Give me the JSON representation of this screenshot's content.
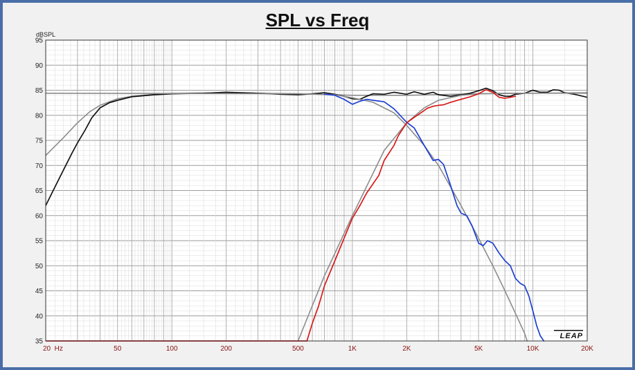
{
  "chart_data": {
    "type": "line",
    "title": "SPL vs Freq",
    "ylabel": "dBSPL",
    "xlabel": "",
    "x_scale": "log",
    "xlim": [
      20,
      20000
    ],
    "ylim": [
      35,
      95
    ],
    "grid": true,
    "x_ticks": [
      {
        "value": 20,
        "label": "20  Hz"
      },
      {
        "value": 50,
        "label": "50"
      },
      {
        "value": 100,
        "label": "100"
      },
      {
        "value": 200,
        "label": "200"
      },
      {
        "value": 500,
        "label": "500"
      },
      {
        "value": 1000,
        "label": "1K"
      },
      {
        "value": 2000,
        "label": "2K"
      },
      {
        "value": 5000,
        "label": "5K"
      },
      {
        "value": 10000,
        "label": "10K"
      },
      {
        "value": 20000,
        "label": "20K"
      }
    ],
    "y_ticks": [
      35,
      40,
      45,
      50,
      55,
      60,
      65,
      70,
      75,
      80,
      85,
      90,
      95
    ],
    "logo_text": "LEAP",
    "series": [
      {
        "color": "#8c8c8c",
        "points": [
          [
            20,
            72
          ],
          [
            25,
            75.5
          ],
          [
            30,
            78.5
          ],
          [
            35,
            80.7
          ],
          [
            40,
            82
          ],
          [
            50,
            83.3
          ],
          [
            60,
            83.8
          ],
          [
            80,
            84.2
          ],
          [
            100,
            84.4
          ],
          [
            200,
            84.5
          ],
          [
            500,
            84.3
          ],
          [
            800,
            84.1
          ],
          [
            1000,
            84
          ],
          [
            2000,
            84
          ],
          [
            5000,
            84.3
          ],
          [
            10000,
            84.4
          ],
          [
            20000,
            84.5
          ]
        ]
      },
      {
        "color": "#111111",
        "points": [
          [
            20,
            62
          ],
          [
            22,
            65
          ],
          [
            25,
            69
          ],
          [
            28,
            72.5
          ],
          [
            30,
            74.5
          ],
          [
            33,
            77
          ],
          [
            36,
            79.5
          ],
          [
            40,
            81.5
          ],
          [
            45,
            82.5
          ],
          [
            50,
            83
          ],
          [
            60,
            83.7
          ],
          [
            80,
            84.1
          ],
          [
            100,
            84.3
          ],
          [
            150,
            84.4
          ],
          [
            200,
            84.6
          ],
          [
            300,
            84.4
          ],
          [
            400,
            84.2
          ],
          [
            500,
            84.1
          ],
          [
            600,
            84.3
          ],
          [
            700,
            84.5
          ],
          [
            800,
            84.2
          ],
          [
            900,
            83.8
          ],
          [
            1000,
            83.3
          ],
          [
            1100,
            83.2
          ],
          [
            1200,
            83.8
          ],
          [
            1300,
            84.3
          ],
          [
            1500,
            84.2
          ],
          [
            1700,
            84.6
          ],
          [
            2000,
            84.2
          ],
          [
            2200,
            84.7
          ],
          [
            2500,
            84.2
          ],
          [
            2800,
            84.6
          ],
          [
            3000,
            84.1
          ],
          [
            3500,
            83.8
          ],
          [
            4000,
            84.1
          ],
          [
            4500,
            84.4
          ],
          [
            5000,
            84.9
          ],
          [
            5500,
            85.4
          ],
          [
            6000,
            84.9
          ],
          [
            6500,
            84.1
          ],
          [
            7000,
            83.8
          ],
          [
            7500,
            83.8
          ],
          [
            8000,
            84.2
          ],
          [
            9000,
            84.4
          ],
          [
            10000,
            85
          ],
          [
            11000,
            84.6
          ],
          [
            12000,
            84.6
          ],
          [
            13000,
            85.1
          ],
          [
            14000,
            85
          ],
          [
            15000,
            84.5
          ],
          [
            17000,
            84.2
          ],
          [
            20000,
            83.6
          ]
        ]
      },
      {
        "color": "#8c8c8c",
        "points": [
          [
            500,
            35
          ],
          [
            700,
            48
          ],
          [
            1000,
            60
          ],
          [
            1500,
            73
          ],
          [
            2000,
            78.5
          ],
          [
            2500,
            81.5
          ],
          [
            3000,
            83
          ],
          [
            4000,
            84
          ],
          [
            5000,
            84.3
          ],
          [
            7000,
            84.4
          ],
          [
            10000,
            84.4
          ],
          [
            20000,
            84.4
          ]
        ]
      },
      {
        "color": "#8c8c8c",
        "points": [
          [
            20,
            84.4
          ],
          [
            500,
            84.3
          ],
          [
            800,
            84.1
          ],
          [
            1000,
            83.5
          ],
          [
            1300,
            82.6
          ],
          [
            1700,
            80.5
          ],
          [
            2000,
            78
          ],
          [
            2500,
            74
          ],
          [
            3000,
            70
          ],
          [
            4000,
            62
          ],
          [
            5000,
            55.5
          ],
          [
            6000,
            50
          ],
          [
            7000,
            45
          ],
          [
            8000,
            40.5
          ],
          [
            9000,
            36.5
          ],
          [
            9300,
            35
          ]
        ]
      },
      {
        "color": "#1c3fd4",
        "points": [
          [
            700,
            84.2
          ],
          [
            800,
            84
          ],
          [
            900,
            83.2
          ],
          [
            1000,
            82.2
          ],
          [
            1100,
            82.8
          ],
          [
            1200,
            83.2
          ],
          [
            1300,
            83
          ],
          [
            1500,
            82.7
          ],
          [
            1700,
            81.3
          ],
          [
            2000,
            78.6
          ],
          [
            2200,
            77.5
          ],
          [
            2500,
            74
          ],
          [
            2800,
            71
          ],
          [
            3000,
            71.2
          ],
          [
            3200,
            70.2
          ],
          [
            3500,
            66
          ],
          [
            3800,
            62
          ],
          [
            4000,
            60.5
          ],
          [
            4300,
            60
          ],
          [
            4600,
            58
          ],
          [
            5000,
            54.5
          ],
          [
            5300,
            54
          ],
          [
            5600,
            55
          ],
          [
            6000,
            54.5
          ],
          [
            6500,
            52.5
          ],
          [
            7000,
            51
          ],
          [
            7500,
            50
          ],
          [
            8000,
            47.5
          ],
          [
            8500,
            46.5
          ],
          [
            9000,
            46
          ],
          [
            9500,
            44
          ],
          [
            10000,
            41
          ],
          [
            10500,
            38
          ],
          [
            11000,
            36
          ],
          [
            11500,
            35
          ]
        ]
      },
      {
        "color": "#d81818",
        "points": [
          [
            560,
            35
          ],
          [
            600,
            38.5
          ],
          [
            650,
            42
          ],
          [
            700,
            46
          ],
          [
            800,
            51
          ],
          [
            900,
            55.5
          ],
          [
            1000,
            59.5
          ],
          [
            1100,
            62
          ],
          [
            1200,
            64.5
          ],
          [
            1400,
            68
          ],
          [
            1500,
            71
          ],
          [
            1700,
            74
          ],
          [
            1800,
            76
          ],
          [
            2000,
            78.5
          ],
          [
            2200,
            79.6
          ],
          [
            2400,
            80.5
          ],
          [
            2600,
            81.4
          ],
          [
            2800,
            81.8
          ],
          [
            3000,
            82
          ],
          [
            3200,
            82.1
          ],
          [
            3500,
            82.6
          ],
          [
            4000,
            83.2
          ],
          [
            4500,
            83.7
          ],
          [
            5000,
            84.3
          ],
          [
            5500,
            85.1
          ],
          [
            6000,
            84.6
          ],
          [
            6500,
            83.6
          ],
          [
            7000,
            83.4
          ],
          [
            7500,
            83.6
          ],
          [
            8000,
            83.8
          ]
        ]
      },
      {
        "color": "#d81818",
        "points": [
          [
            20,
            35
          ],
          [
            560,
            35
          ]
        ]
      }
    ]
  }
}
